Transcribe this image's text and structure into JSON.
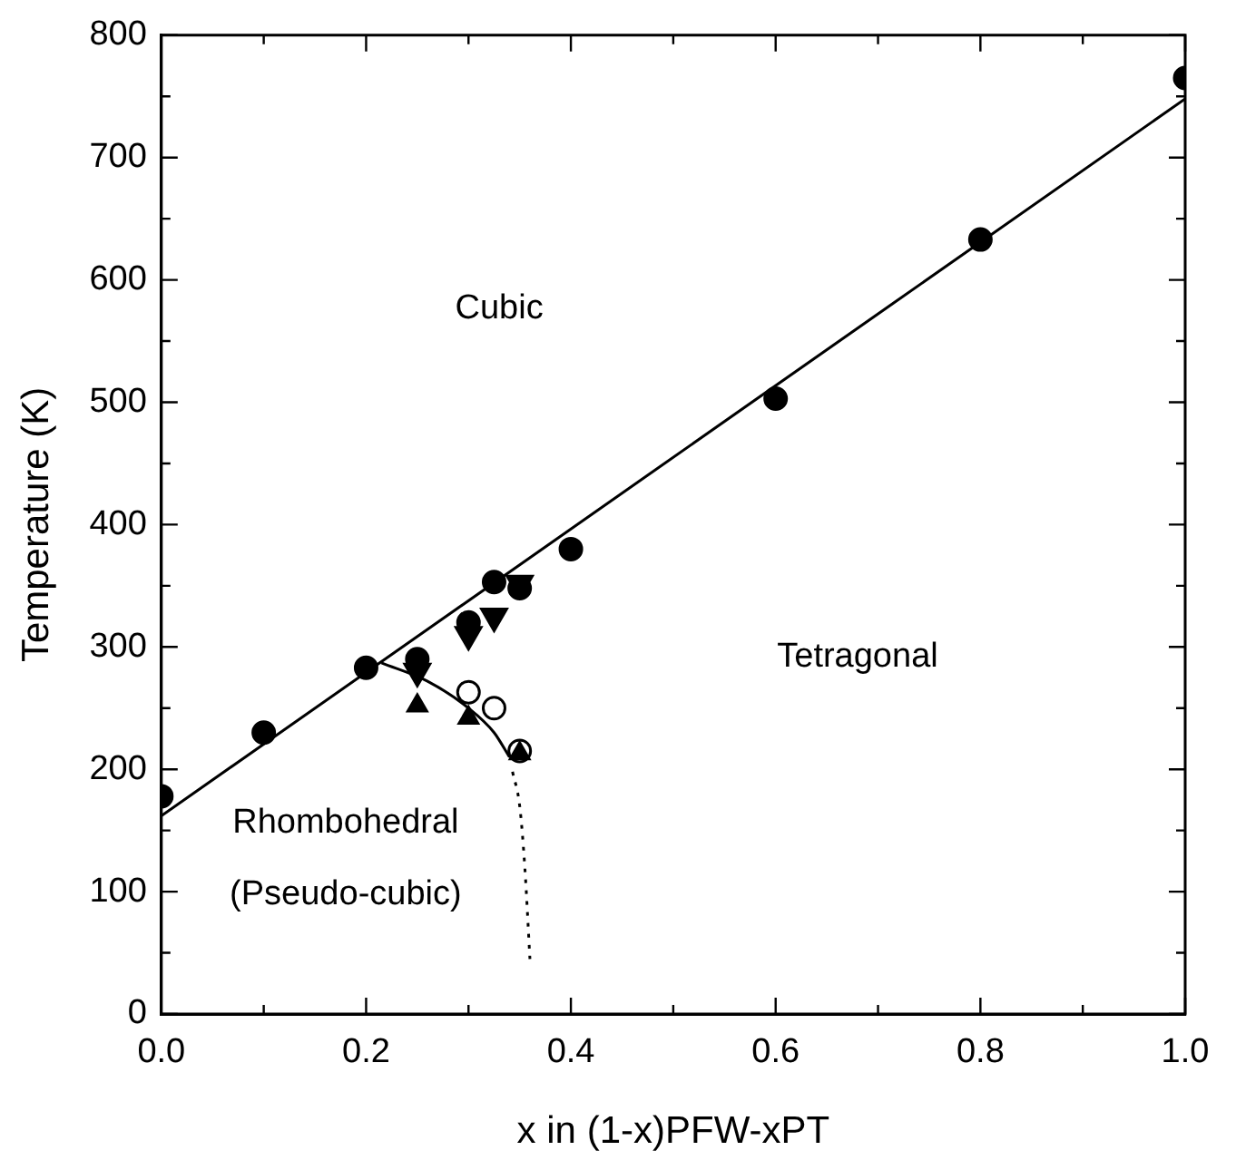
{
  "chart_data": {
    "type": "scatter",
    "xlabel": "x in (1-x)PFW-xPT",
    "ylabel": "Temperature (K)",
    "xlim": [
      0,
      1
    ],
    "ylim": [
      0,
      800
    ],
    "xticks": [
      {
        "value": 0,
        "label": "0.0"
      },
      {
        "value": 0.1,
        "label": null
      },
      {
        "value": 0.2,
        "label": "0.2"
      },
      {
        "value": 0.3,
        "label": null
      },
      {
        "value": 0.4,
        "label": "0.4"
      },
      {
        "value": 0.5,
        "label": null
      },
      {
        "value": 0.6,
        "label": "0.6"
      },
      {
        "value": 0.7,
        "label": null
      },
      {
        "value": 0.8,
        "label": "0.8"
      },
      {
        "value": 0.9,
        "label": null
      },
      {
        "value": 1,
        "label": "1.0"
      }
    ],
    "yticks": [
      0,
      {
        "value": 50,
        "label": null
      },
      100,
      {
        "value": 150,
        "label": null
      },
      200,
      {
        "value": 250,
        "label": null
      },
      300,
      {
        "value": 350,
        "label": null
      },
      400,
      {
        "value": 450,
        "label": null
      },
      500,
      {
        "value": 550,
        "label": null
      },
      600,
      {
        "value": 650,
        "label": null
      },
      700,
      {
        "value": 750,
        "label": null
      },
      800
    ],
    "grid": false,
    "legend": false,
    "series": [
      {
        "type": "scatter",
        "marker": "circle",
        "color": "#000000",
        "x": [
          0,
          0.1,
          0.2,
          0.25,
          0.3,
          0.325,
          0.35,
          0.4,
          0.6,
          0.8,
          1.0
        ],
        "values": [
          178,
          230,
          283,
          290,
          320,
          353,
          348,
          380,
          503,
          633,
          765
        ]
      },
      {
        "type": "scatter",
        "marker": "triangle-down",
        "color": "#000000",
        "x": [
          0.25,
          0.3,
          0.325,
          0.35
        ],
        "values": [
          280,
          310,
          325,
          352
        ]
      },
      {
        "type": "scatter",
        "marker": "triangle",
        "color": "#000000",
        "x": [
          0.25,
          0.3,
          0.35
        ],
        "values": [
          252,
          242,
          213
        ]
      },
      {
        "type": "scatter",
        "marker": "circle-open",
        "color": "#000000",
        "x": [
          0.3,
          0.325,
          0.35
        ],
        "values": [
          263,
          250,
          215
        ]
      },
      {
        "type": "line",
        "marker": "none",
        "line_style": "solid",
        "color": "#000000",
        "x": [
          0,
          1
        ],
        "values": [
          162,
          748
        ]
      },
      {
        "type": "line",
        "marker": "none",
        "line_style": "solid",
        "color": "#000000",
        "x": [
          0.215,
          0.26,
          0.3,
          0.325,
          0.34
        ],
        "values": [
          287,
          272,
          250,
          230,
          210
        ]
      },
      {
        "type": "line",
        "marker": "none",
        "line_style": "dotted",
        "color": "#000000",
        "x": [
          0.343,
          0.35,
          0.355,
          0.36
        ],
        "values": [
          198,
          170,
          120,
          45
        ]
      }
    ],
    "annotations": [
      "Cubic",
      "Tetragonal",
      "Rhombohedral",
      "(Pseudo-cubic)"
    ]
  }
}
